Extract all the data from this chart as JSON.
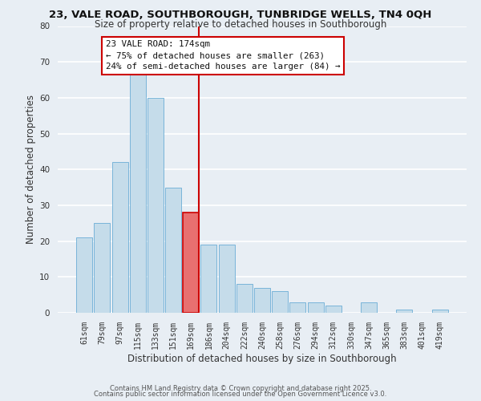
{
  "title": "23, VALE ROAD, SOUTHBOROUGH, TUNBRIDGE WELLS, TN4 0QH",
  "subtitle": "Size of property relative to detached houses in Southborough",
  "xlabel": "Distribution of detached houses by size in Southborough",
  "ylabel": "Number of detached properties",
  "bin_labels": [
    "61sqm",
    "79sqm",
    "97sqm",
    "115sqm",
    "133sqm",
    "151sqm",
    "169sqm",
    "186sqm",
    "204sqm",
    "222sqm",
    "240sqm",
    "258sqm",
    "276sqm",
    "294sqm",
    "312sqm",
    "330sqm",
    "347sqm",
    "365sqm",
    "383sqm",
    "401sqm",
    "419sqm"
  ],
  "bar_heights": [
    21,
    25,
    42,
    67,
    60,
    35,
    28,
    19,
    19,
    8,
    7,
    6,
    3,
    3,
    2,
    0,
    3,
    0,
    1,
    0,
    1
  ],
  "highlighted_bar_index": 6,
  "bar_color": "#c5dcea",
  "highlight_bar_color": "#e87070",
  "bar_edge_color": "#6aadd5",
  "highlight_edge_color": "#cc0000",
  "vline_color": "#cc0000",
  "annotation_title": "23 VALE ROAD: 174sqm",
  "annotation_line1": "← 75% of detached houses are smaller (263)",
  "annotation_line2": "24% of semi-detached houses are larger (84) →",
  "annotation_box_color": "#ffffff",
  "annotation_border_color": "#cc0000",
  "ylim": [
    0,
    80
  ],
  "yticks": [
    0,
    10,
    20,
    30,
    40,
    50,
    60,
    70,
    80
  ],
  "background_color": "#e8eef4",
  "grid_color": "#ffffff",
  "footnote1": "Contains HM Land Registry data © Crown copyright and database right 2025.",
  "footnote2": "Contains public sector information licensed under the Open Government Licence v3.0.",
  "title_fontsize": 9.5,
  "subtitle_fontsize": 8.5,
  "axis_label_fontsize": 8.5,
  "tick_fontsize": 7,
  "annotation_fontsize": 7.8,
  "footnote_fontsize": 6.0
}
